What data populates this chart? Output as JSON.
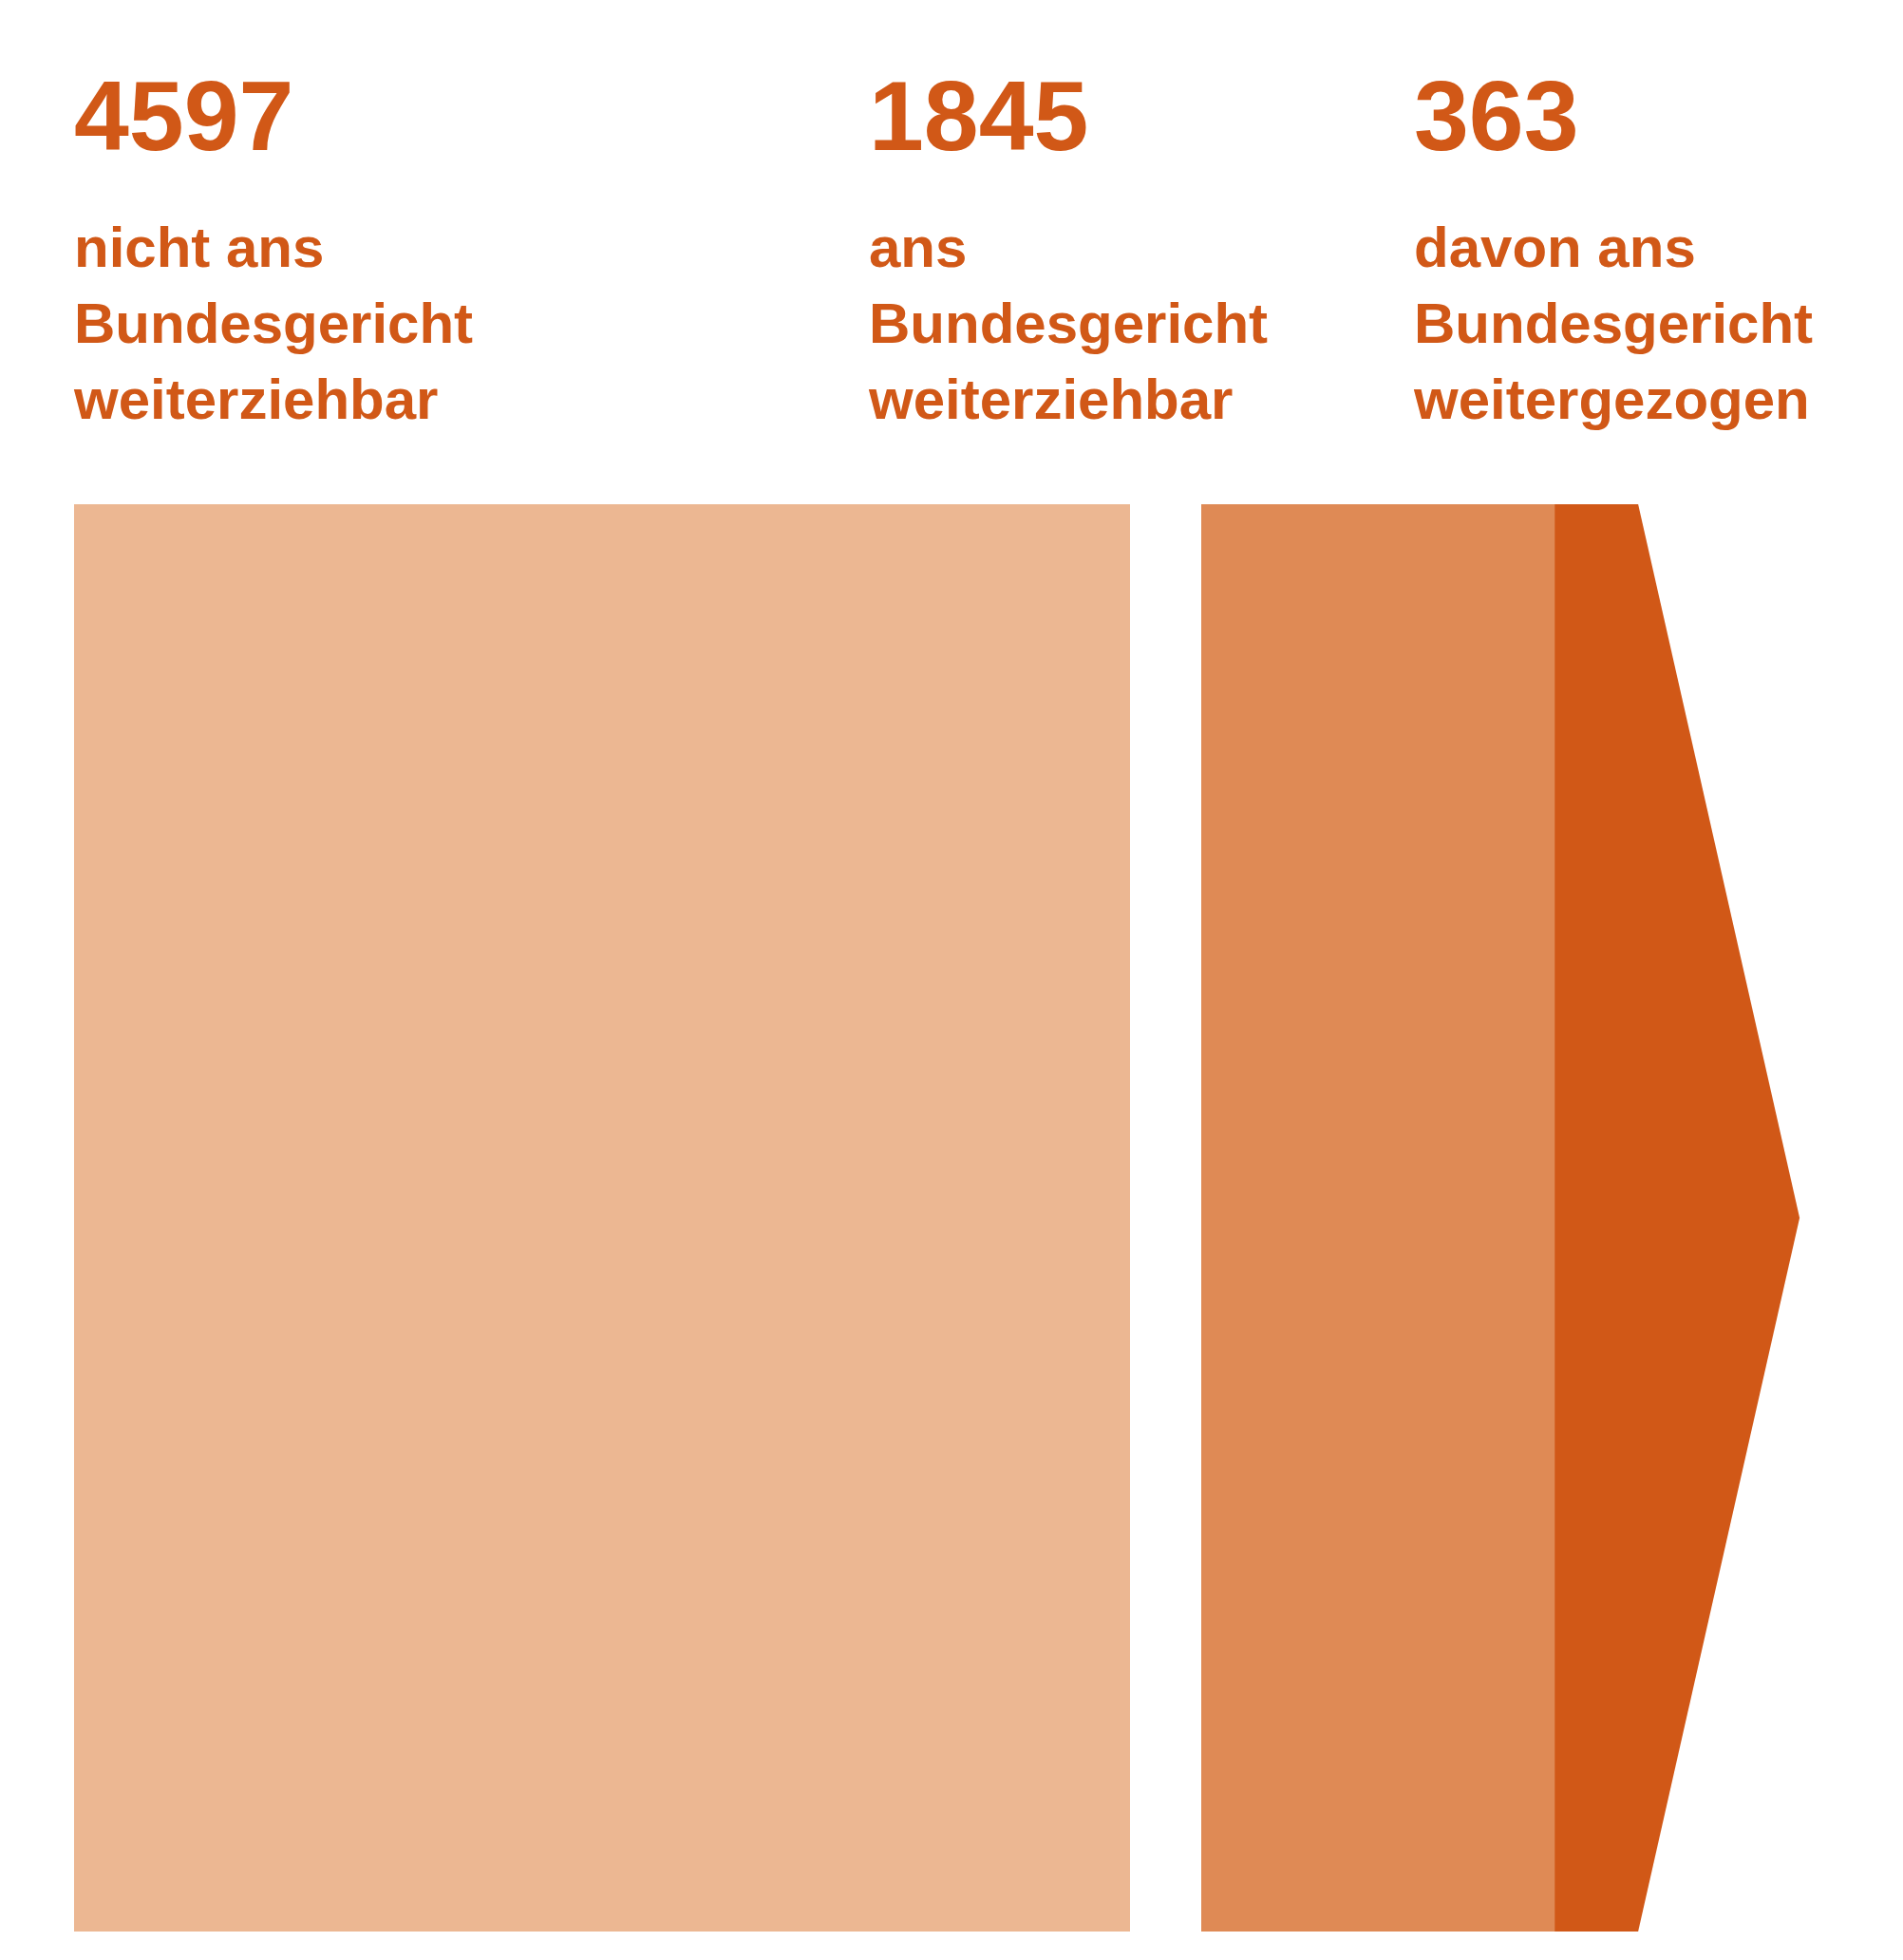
{
  "chart_data": {
    "type": "other",
    "categories": [
      "nicht ans Bundesgericht weiterziehbar",
      "ans Bundesgericht weiterziehbar",
      "davon ans Bundesgericht weitergezogen"
    ],
    "values": [
      4597,
      1845,
      363
    ],
    "colors": [
      "#ecb792",
      "#df8a55",
      "#d15817"
    ],
    "data_labels": true
  }
}
